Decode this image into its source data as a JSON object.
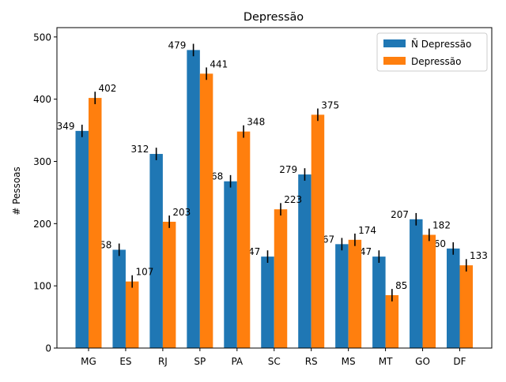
{
  "chart_data": {
    "type": "bar",
    "title": "Depressão",
    "xlabel": "",
    "ylabel": "# Pessoas",
    "ylim": [
      0,
      515
    ],
    "yticks": [
      0,
      100,
      200,
      300,
      400,
      500
    ],
    "categories": [
      "MG",
      "ES",
      "RJ",
      "SP",
      "PA",
      "SC",
      "RS",
      "MS",
      "MT",
      "GO",
      "DF"
    ],
    "series": [
      {
        "name": "Ñ Depressão",
        "color": "#1f77b4",
        "values": [
          349,
          158,
          312,
          479,
          268,
          147,
          279,
          167,
          147,
          207,
          160
        ],
        "labels": [
          "349",
          "158",
          "312",
          "479",
          "268",
          "147",
          "279",
          "167",
          "147",
          "207",
          "160"
        ]
      },
      {
        "name": "Depressão",
        "color": "#ff7f0e",
        "values": [
          402,
          107,
          203,
          441,
          348,
          223,
          375,
          174,
          85,
          182,
          133
        ],
        "labels": [
          "402",
          "107",
          "203",
          "441",
          "348",
          "223",
          "375",
          "174",
          "85",
          "182",
          "133"
        ]
      }
    ],
    "error_bar": 10,
    "legend_position": "upper right"
  }
}
